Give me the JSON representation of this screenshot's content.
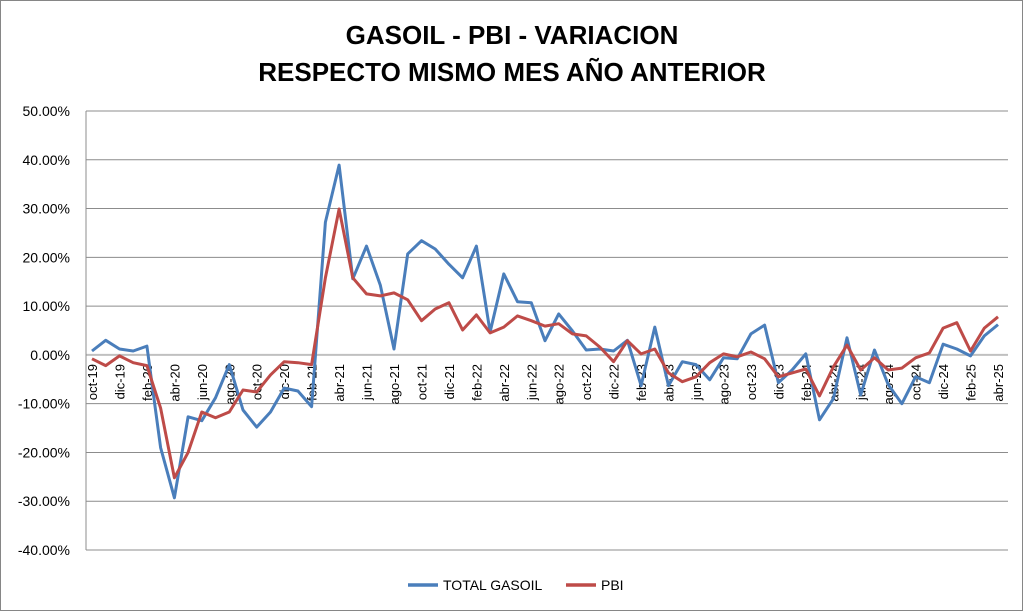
{
  "chart_data": {
    "type": "line",
    "title": [
      "GASOIL - PBI - VARIACION",
      "RESPECTO MISMO MES AÑO ANTERIOR"
    ],
    "xlabel": "",
    "ylabel": "",
    "ylim": [
      -40,
      50
    ],
    "yticks": [
      50,
      40,
      30,
      20,
      10,
      0,
      -10,
      -20,
      -30,
      -40
    ],
    "ytick_labels": [
      "50.00%",
      "40.00%",
      "30.00%",
      "20.00%",
      "10.00%",
      "0.00%",
      "-10.00%",
      "-20.00%",
      "-30.00%",
      "-40.00%"
    ],
    "grid": true,
    "legend_position": "bottom",
    "categories": [
      "oct-19",
      "nov-19",
      "dic-19",
      "ene-20",
      "feb-20",
      "mar-20",
      "abr-20",
      "may-20",
      "jun-20",
      "jul-20",
      "ago-20",
      "sep-20",
      "oct-20",
      "nov-20",
      "dic-20",
      "ene-21",
      "feb-21",
      "mar-21",
      "abr-21",
      "may-21",
      "jun-21",
      "jul-21",
      "ago-21",
      "sep-21",
      "oct-21",
      "nov-21",
      "dic-21",
      "ene-22",
      "feb-22",
      "mar-22",
      "abr-22",
      "may-22",
      "jun-22",
      "jul-22",
      "ago-22",
      "sep-22",
      "oct-22",
      "nov-22",
      "dic-22",
      "ene-23",
      "feb-23",
      "mar-23",
      "abr-23",
      "may-23",
      "jun-23",
      "jul-23",
      "ago-23",
      "sep-23",
      "oct-23",
      "nov-23",
      "dic-23",
      "ene-24",
      "feb-24",
      "mar-24",
      "abr-24",
      "may-24",
      "jun-24",
      "jul-24",
      "ago-24",
      "sep-24",
      "oct-24",
      "nov-24",
      "dic-24",
      "ene-25",
      "feb-25",
      "mar-25",
      "abr-25"
    ],
    "series": [
      {
        "name": "TOTAL GASOIL",
        "color": "#4a7ebb",
        "values": [
          0.8,
          3.0,
          1.2,
          0.8,
          1.8,
          -19,
          -29.3,
          -12.7,
          -13.5,
          -8.8,
          -2.0,
          -11.3,
          -14.8,
          -11.7,
          -6.8,
          -7.4,
          -10.6,
          27.2,
          38.9,
          15.6,
          22.3,
          14.3,
          1.2,
          20.7,
          23.4,
          21.7,
          18.6,
          15.8,
          22.3,
          4.7,
          16.6,
          10.9,
          10.7,
          2.9,
          8.4,
          4.9,
          1.0,
          1.2,
          0.8,
          3.0,
          -6.3,
          5.7,
          -6.3,
          -1.4,
          -2.0,
          -5.1,
          -0.6,
          -0.8,
          4.3,
          6.1,
          -5.7,
          -3.1,
          0.2,
          -13.3,
          -9.0,
          3.5,
          -8.2,
          1.0,
          -6.1,
          -10.0,
          -4.5,
          -5.7,
          2.2,
          1.2,
          -0.2,
          3.9,
          6.2
        ]
      },
      {
        "name": "PBI",
        "color": "#be4b48",
        "values": [
          -0.8,
          -2.2,
          -0.2,
          -1.6,
          -2.2,
          -10.9,
          -25.2,
          -20.0,
          -11.7,
          -12.9,
          -11.7,
          -7.2,
          -7.6,
          -4.1,
          -1.4,
          -1.6,
          -2.0,
          15.8,
          29.9,
          15.8,
          12.5,
          12.1,
          12.7,
          11.3,
          7.0,
          9.4,
          10.7,
          5.1,
          8.2,
          4.5,
          5.7,
          8.0,
          7.0,
          5.9,
          6.4,
          4.3,
          3.9,
          1.6,
          -1.4,
          2.9,
          0.2,
          1.2,
          -3.7,
          -5.5,
          -4.5,
          -1.6,
          0.2,
          -0.4,
          0.6,
          -0.8,
          -4.5,
          -3.7,
          -2.9,
          -8.4,
          -2.5,
          2.0,
          -3.1,
          -0.6,
          -3.1,
          -2.7,
          -0.6,
          0.4,
          5.5,
          6.6,
          0.8,
          5.5,
          7.8
        ]
      }
    ]
  }
}
